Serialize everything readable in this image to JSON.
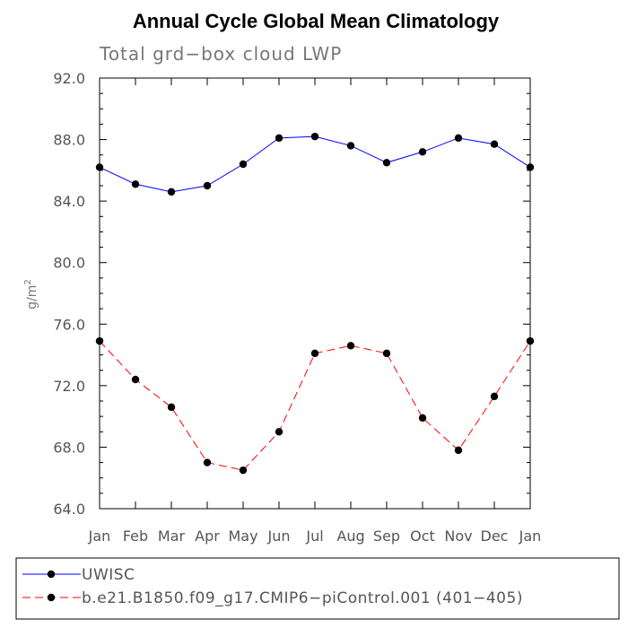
{
  "chart_data": {
    "type": "line",
    "title": "Annual Cycle Global Mean Climatology",
    "subtitle": "Total grd−box cloud LWP",
    "ylabel": "g/m²",
    "ylabel_main": "g/m",
    "ylabel_sup": "2",
    "xlabel": "",
    "categories": [
      "Jan",
      "Feb",
      "Mar",
      "Apr",
      "May",
      "Jun",
      "Jul",
      "Aug",
      "Sep",
      "Oct",
      "Nov",
      "Dec",
      "Jan"
    ],
    "ylim": [
      64.0,
      92.0
    ],
    "yticks": [
      64.0,
      68.0,
      72.0,
      76.0,
      80.0,
      84.0,
      88.0,
      92.0
    ],
    "ytick_labels": [
      "64.0",
      "68.0",
      "72.0",
      "76.0",
      "80.0",
      "84.0",
      "88.0",
      "92.0"
    ],
    "series": [
      {
        "name": "UWISC",
        "color": "#0000ff",
        "dash": "solid",
        "values": [
          86.2,
          85.1,
          84.6,
          85.0,
          86.4,
          88.1,
          88.2,
          87.6,
          86.5,
          87.2,
          88.1,
          87.7,
          86.2
        ]
      },
      {
        "name": "b.e21.B1850.f09_g17.CMIP6−piControl.001 (401−405)",
        "color": "#ff0000",
        "dash": "dashed",
        "values": [
          74.9,
          72.4,
          70.6,
          67.0,
          66.5,
          69.0,
          74.1,
          74.6,
          74.1,
          69.9,
          67.8,
          71.3,
          74.9
        ]
      }
    ],
    "legend_position": "bottom-left"
  }
}
